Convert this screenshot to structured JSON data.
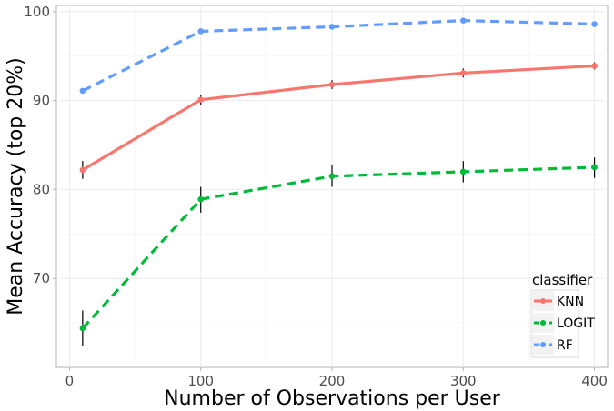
{
  "chart_data": {
    "type": "line",
    "title": "",
    "xlabel": "Number of Observations per User",
    "ylabel": "Mean Accuracy (top 20%)",
    "xlim": [
      -10,
      410
    ],
    "ylim": [
      60,
      100.7
    ],
    "x_ticks": [
      0,
      100,
      200,
      300,
      400
    ],
    "x_tick_labels": [
      "0",
      "100",
      "200",
      "300",
      "400"
    ],
    "y_ticks": [
      70,
      80,
      90,
      100
    ],
    "y_tick_labels": [
      "70",
      "80",
      "90",
      "100"
    ],
    "grid": true,
    "legend": {
      "title": "classifier",
      "position": "bottom-right"
    },
    "x": [
      10,
      100,
      200,
      300,
      400
    ],
    "series": [
      {
        "name": "KNN",
        "color": "#F8766D",
        "dash": "solid",
        "values": [
          82.2,
          90.1,
          91.8,
          93.1,
          93.9
        ],
        "error_low": [
          81.2,
          89.5,
          91.3,
          92.6,
          93.5
        ],
        "error_high": [
          83.2,
          90.6,
          92.3,
          93.6,
          94.3
        ]
      },
      {
        "name": "LOGIT",
        "color": "#00BA38",
        "dash": "dashed",
        "values": [
          64.4,
          78.9,
          81.5,
          82.0,
          82.5
        ],
        "error_low": [
          62.4,
          77.4,
          80.3,
          80.8,
          81.3
        ],
        "error_high": [
          66.4,
          80.3,
          82.7,
          83.2,
          83.6
        ]
      },
      {
        "name": "RF",
        "color": "#619CFF",
        "dash": "dashed",
        "values": [
          91.1,
          97.8,
          98.3,
          99.0,
          98.6
        ],
        "error_low": [
          91.0,
          97.6,
          98.1,
          98.8,
          98.4
        ],
        "error_high": [
          91.2,
          98.0,
          98.5,
          99.2,
          98.8
        ]
      }
    ]
  }
}
